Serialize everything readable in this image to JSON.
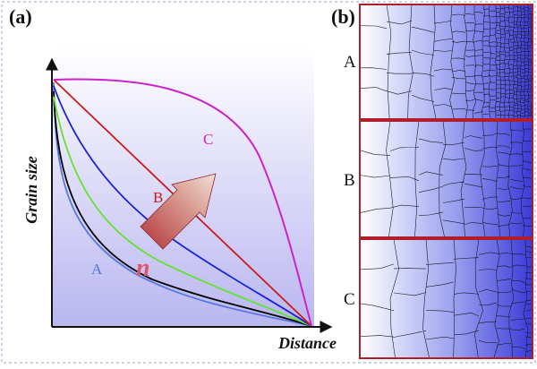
{
  "panel_a": {
    "label": "(a)",
    "y_axis_title": "Grain size",
    "x_axis_title": "Distance",
    "curves": [
      {
        "label": "A",
        "color": "#5577e0"
      },
      {
        "label": "",
        "color": "#000000"
      },
      {
        "label": "",
        "color": "#66e033"
      },
      {
        "label": "",
        "color": "#1a22d8"
      },
      {
        "label": "B",
        "color": "#cc1a1a"
      },
      {
        "label": "C",
        "color": "#cc22cc"
      }
    ],
    "arrow_label": "n",
    "arrow_label_color": "#e0566a"
  },
  "panel_b": {
    "label": "(b)",
    "rows": [
      {
        "label": "A"
      },
      {
        "label": "B"
      },
      {
        "label": "C"
      }
    ],
    "frame_color": "#b01e2a",
    "gradient_color": "#3a3ad8"
  }
}
